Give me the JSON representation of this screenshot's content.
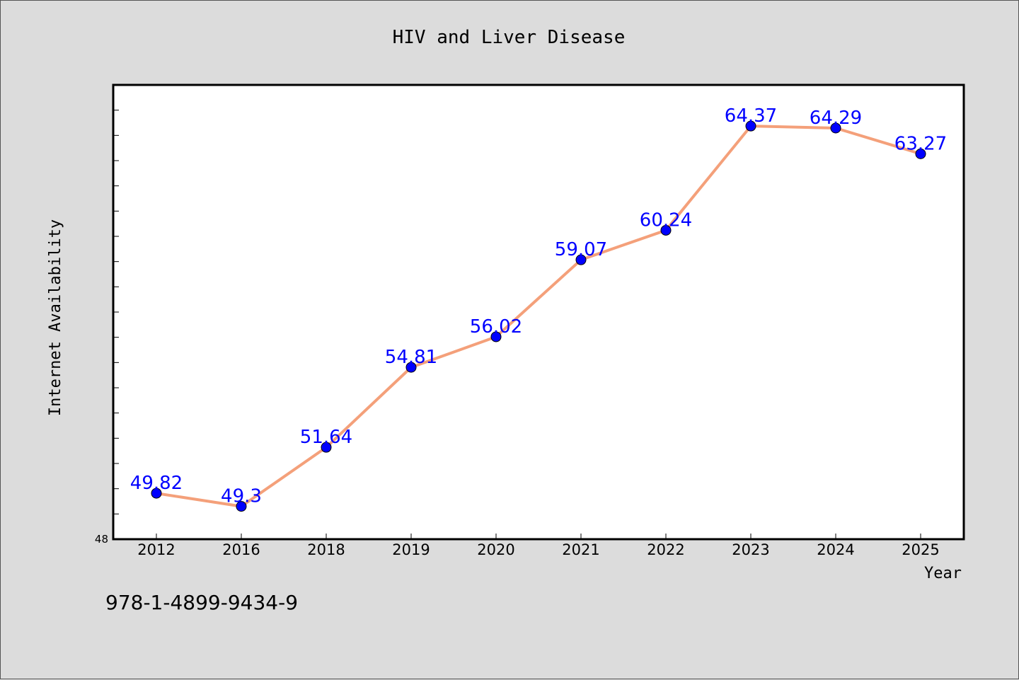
{
  "chart_data": {
    "type": "line",
    "title": "HIV and Liver Disease",
    "xlabel": "Year",
    "ylabel": "Internet Availability",
    "categories": [
      "2012",
      "2016",
      "2018",
      "2019",
      "2020",
      "2021",
      "2022",
      "2023",
      "2024",
      "2025"
    ],
    "series": [
      {
        "values": [
          49.82,
          49.3,
          51.64,
          54.81,
          56.02,
          59.07,
          60.24,
          64.37,
          64.29,
          63.27
        ],
        "data_labels": [
          "49.82",
          "49.3",
          "51.64",
          "54.81",
          "56.02",
          "59.07",
          "60.24",
          "64.37",
          "64.29",
          "63.27"
        ],
        "line_color": "#f4a07a",
        "marker_color": "#0000ff"
      }
    ],
    "y_min_label": "48",
    "ylim": [
      48,
      66
    ],
    "grid": false,
    "legend": "none"
  },
  "footer": {
    "isbn": "978-1-4899-9434-9"
  }
}
